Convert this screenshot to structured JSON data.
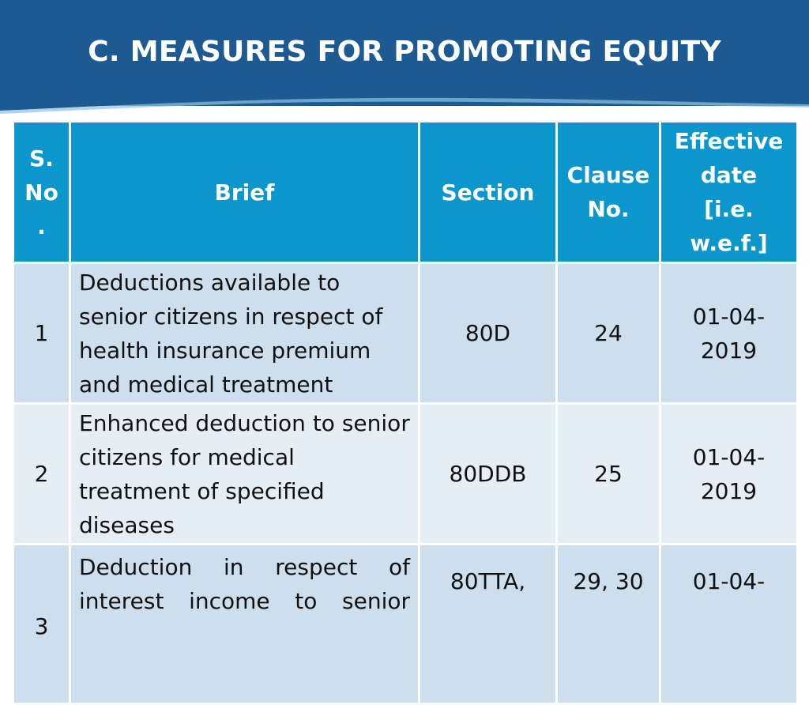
{
  "slide": {
    "title": "C. MEASURES FOR PROMOTING EQUITY"
  },
  "table": {
    "headers": {
      "sno": "S. No .",
      "brief": "Brief",
      "section": "Section",
      "clause": "Clause No.",
      "effective": "Effective date [i.e. w.e.f.]"
    },
    "rows": [
      {
        "sno": "1",
        "brief": "Deductions available to senior citizens in respect of health insurance premium and medical treatment",
        "section": "80D",
        "clause": "24",
        "effective": "01-04-2019"
      },
      {
        "sno": "2",
        "brief": "Enhanced deduction to senior citizens for medical treatment of specified diseases",
        "section": "80DDB",
        "clause": "25",
        "effective": "01-04-2019"
      },
      {
        "sno": "3",
        "brief": "Deduction in respect of interest income to senior",
        "section": "80TTA,",
        "clause": "29, 30",
        "effective": "01-04-"
      }
    ]
  },
  "colors": {
    "header_bg": "#1e5a92",
    "table_header_bg": "#0b96cc",
    "row_odd_bg": "#cddfec",
    "row_even_bg": "#e6eef5"
  }
}
